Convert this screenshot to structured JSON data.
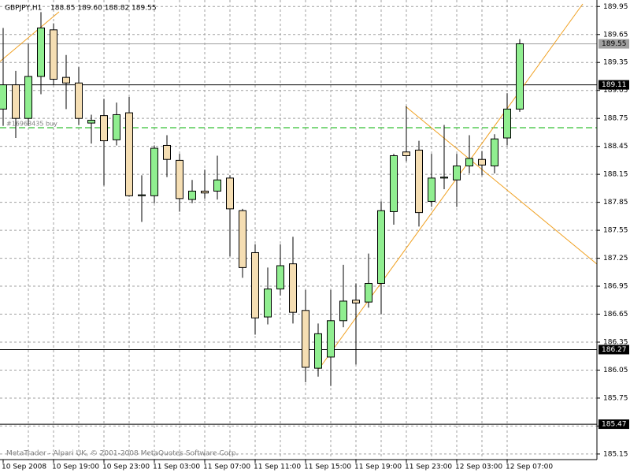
{
  "chart_data": {
    "type": "candlestick",
    "title": "GBPJPY,H1",
    "quote": "188.85 189.60 188.82 189.55",
    "footer": "MetaTrader - Alpari UK, © 2001-2008 MetaQuotes Software Corp.",
    "categories": [
      "10 Sep 2008",
      null,
      null,
      null,
      "10 Sep 19:00",
      null,
      null,
      null,
      "10 Sep 23:00",
      null,
      null,
      null,
      "11 Sep 03:00",
      null,
      null,
      null,
      "11 Sep 07:00",
      null,
      null,
      null,
      "11 Sep 11:00",
      null,
      null,
      null,
      "11 Sep 15:00",
      null,
      null,
      null,
      "11 Sep 19:00",
      null,
      null,
      null,
      "11 Sep 23:00",
      null,
      null,
      null,
      "12 Sep 03:00",
      null,
      null,
      null,
      "12 Sep 07:00",
      null
    ],
    "open": [
      188.85,
      189.11,
      188.75,
      189.2,
      189.7,
      189.19,
      189.13,
      188.7,
      188.78,
      188.52,
      188.81,
      187.92,
      187.92,
      188.46,
      188.3,
      187.88,
      187.97,
      187.97,
      188.11,
      187.76,
      187.31,
      186.62,
      186.92,
      187.19,
      186.69,
      186.07,
      186.19,
      186.58,
      186.8,
      186.78,
      186.98,
      187.75,
      188.39,
      188.41,
      187.86,
      188.11,
      188.09,
      188.24,
      188.31,
      188.24,
      188.54,
      188.85
    ],
    "high": [
      189.72,
      189.26,
      189.55,
      189.89,
      189.77,
      189.43,
      189.3,
      188.79,
      188.96,
      188.92,
      188.98,
      188.14,
      188.46,
      188.57,
      188.37,
      188.09,
      188.2,
      188.35,
      188.14,
      187.78,
      187.4,
      187.15,
      187.4,
      187.48,
      186.91,
      186.55,
      186.91,
      187.18,
      186.98,
      187.3,
      187.86,
      188.37,
      188.88,
      188.51,
      188.37,
      188.68,
      188.37,
      188.57,
      188.4,
      188.58,
      189.02,
      189.6
    ],
    "low": [
      188.67,
      188.54,
      188.67,
      189.01,
      189.11,
      188.85,
      188.68,
      188.48,
      188.03,
      188.46,
      187.91,
      187.64,
      187.84,
      188.12,
      187.75,
      187.84,
      187.89,
      187.88,
      187.27,
      187.04,
      186.43,
      186.54,
      186.85,
      186.55,
      185.92,
      185.98,
      185.88,
      186.51,
      186.11,
      186.72,
      186.65,
      187.61,
      188.29,
      187.59,
      187.8,
      187.99,
      187.8,
      188.16,
      188.14,
      188.16,
      188.46,
      188.82
    ],
    "close": [
      189.11,
      188.75,
      189.2,
      189.72,
      189.17,
      189.13,
      188.75,
      188.73,
      188.51,
      188.79,
      187.92,
      187.93,
      188.43,
      188.31,
      187.89,
      187.97,
      187.95,
      188.09,
      187.78,
      187.15,
      186.61,
      186.92,
      187.17,
      186.67,
      186.08,
      186.44,
      186.58,
      186.79,
      186.77,
      186.98,
      187.76,
      188.35,
      188.35,
      187.74,
      188.11,
      188.12,
      188.24,
      188.32,
      188.25,
      188.53,
      188.85,
      189.55
    ],
    "up_color": "#90ee90",
    "down_color": "#f5deb3",
    "ylim": [
      185.09,
      190.02
    ],
    "yticks": [
      185.15,
      185.45,
      185.75,
      186.05,
      186.35,
      186.65,
      186.95,
      187.25,
      187.55,
      187.85,
      188.15,
      188.45,
      188.75,
      189.05,
      189.35,
      189.65,
      189.95
    ],
    "grid": true,
    "price_lines": [
      {
        "value": 189.55,
        "color": "#a0a0a0"
      },
      {
        "value": 189.11,
        "color": "#000000"
      },
      {
        "value": 186.27,
        "color": "#000000"
      },
      {
        "value": 185.47,
        "color": "#000000"
      }
    ],
    "order": {
      "label": "#16963435 buy",
      "price": 188.65,
      "color": "#00b000"
    }
  }
}
